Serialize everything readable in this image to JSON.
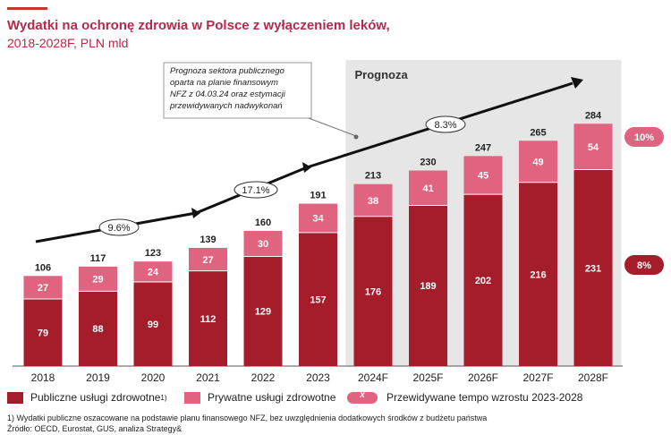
{
  "header": {
    "title": "Wydatki na ochronę zdrowia w Polsce z wyłączeniem leków,",
    "subtitle": "2018-2028F, PLN mld"
  },
  "chart_data": {
    "type": "bar",
    "stacked": true,
    "categories": [
      "2018",
      "2019",
      "2020",
      "2021",
      "2022",
      "2023",
      "2024F",
      "2025F",
      "2026F",
      "2027F",
      "2028F"
    ],
    "series": [
      {
        "name": "Publiczne usługi zdrowotne",
        "values": [
          79,
          88,
          99,
          112,
          129,
          157,
          176,
          189,
          202,
          216,
          231
        ],
        "color": "#a51d2a"
      },
      {
        "name": "Prywatne usługi zdrowotne",
        "values": [
          27,
          29,
          24,
          27,
          30,
          34,
          38,
          41,
          45,
          49,
          54
        ],
        "color": "#e06480"
      }
    ],
    "totals": [
      106,
      117,
      123,
      139,
      160,
      191,
      213,
      230,
      247,
      265,
      284
    ],
    "forecast_label": "Prognoza",
    "forecast_start_index": 6,
    "growth_rates": [
      {
        "label": "9.6%",
        "period": "2018-2021"
      },
      {
        "label": "17.1%",
        "period": "2021-2023"
      },
      {
        "label": "8.3%",
        "period": "2023-2028F"
      }
    ],
    "cagr_badges": [
      {
        "label": "10%",
        "series": "Prywatne usługi zdrowotne"
      },
      {
        "label": "8%",
        "series": "Publiczne usługi zdrowotne"
      }
    ],
    "annotation": [
      "Prognoza sektora publicznego",
      "oparta na planie finansowym",
      "NFZ z 04.03.24 oraz estymacji",
      "przewidywanych nadwykonań"
    ],
    "ylim": [
      0,
      300
    ],
    "grid": false
  },
  "legend": {
    "public": "Publiczne usługi zdrowotne",
    "public_sup": "1)",
    "private": "Prywatne usługi zdrowotne",
    "growth_symbol": "x",
    "growth": "Przewidywane tempo wzrostu 2023-2028"
  },
  "footnotes": {
    "note1": "1) Wydatki publiczne oszacowane na podstawie planu finansowego NFZ, bez uwzględnienia dodatkowych środków z budżetu państwa",
    "source": "Źródło: OECD, Eurostat, GUS, analiza Strategy&"
  },
  "colors": {
    "public": "#a51d2a",
    "private": "#e06480",
    "title": "#b5294a",
    "forecast_bg": "#e6e6e6"
  }
}
